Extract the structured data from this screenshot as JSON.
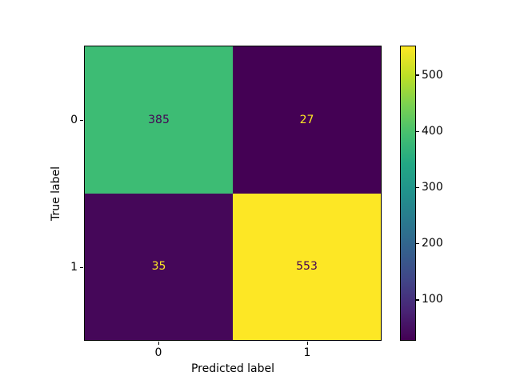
{
  "figure": {
    "background": "#ffffff",
    "text_color": "#000000"
  },
  "chart_data": {
    "type": "heatmap",
    "title": "",
    "xlabel": "Predicted label",
    "ylabel": "True label",
    "x_categories": [
      "0",
      "1"
    ],
    "y_categories": [
      "0",
      "1"
    ],
    "matrix": [
      [
        385,
        27
      ],
      [
        35,
        553
      ]
    ],
    "colormap": "viridis",
    "vmin": 27,
    "vmax": 553,
    "colorbar_ticks": [
      100,
      200,
      300,
      400,
      500
    ],
    "colorbar_position": "right",
    "grid": false
  },
  "cells": [
    {
      "bg": "#3dbc74",
      "fg": "#440154"
    },
    {
      "bg": "#440154",
      "fg": "#fde725"
    },
    {
      "bg": "#450759",
      "fg": "#fde725"
    },
    {
      "bg": "#fde725",
      "fg": "#440154"
    }
  ],
  "colorbar": {
    "gradient_stops": [
      "#440154",
      "#482475",
      "#414487",
      "#355f8d",
      "#2a788e",
      "#21918c",
      "#22a884",
      "#44bf70",
      "#7ad151",
      "#bddf26",
      "#fde725"
    ]
  }
}
